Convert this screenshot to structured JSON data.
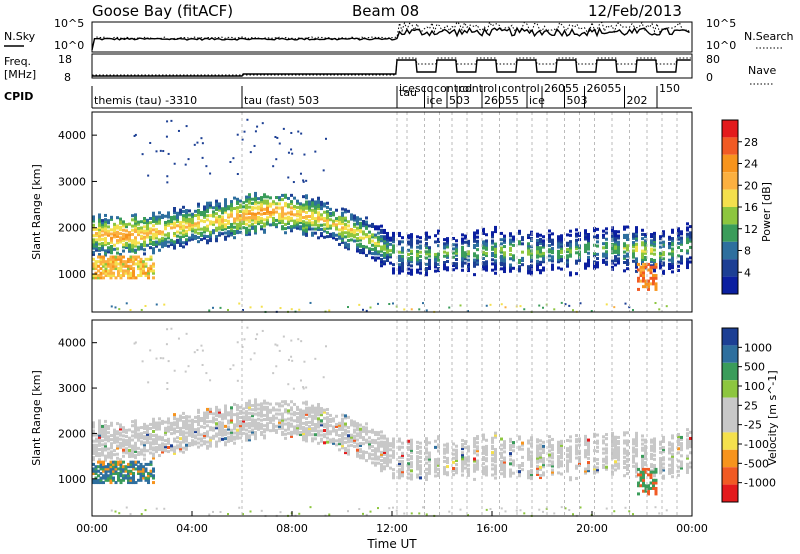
{
  "header": {
    "station": "Goose Bay (fitACF)",
    "beam": "Beam 08",
    "date": "12/Feb/2013"
  },
  "noise_panel": {
    "left_label": "N.Sky",
    "right_label": "N.Search",
    "y_ticks_left": [
      "10^5",
      "10^0"
    ],
    "y_ticks_right": [
      "10^5",
      "10^0"
    ]
  },
  "freq_panel": {
    "left_label_line1": "Freq.",
    "left_label_line2": "[MHz]",
    "right_label": "Nave",
    "y_ticks_left": [
      "18",
      "8"
    ],
    "y_ticks_right": [
      "80",
      "0"
    ]
  },
  "cpid": {
    "label": "CPID",
    "segments": [
      {
        "start_hour": 0.0,
        "text": "themis (tau) -3310"
      },
      {
        "start_hour": 6.0,
        "text": "tau (fast) 503"
      },
      {
        "start_hour": 12.2,
        "text": "tau"
      },
      {
        "start_hour": 12.2,
        "text": "icesco"
      },
      {
        "start_hour": 13.3,
        "text": "ice"
      },
      {
        "start_hour": 13.6,
        "text": "control"
      },
      {
        "start_hour": 14.2,
        "text": "503"
      },
      {
        "start_hour": 14.6,
        "text": "control"
      },
      {
        "start_hour": 15.6,
        "text": "26055"
      },
      {
        "start_hour": 16.3,
        "text": "control"
      },
      {
        "start_hour": 17.4,
        "text": "ice"
      },
      {
        "start_hour": 18.0,
        "text": "26055"
      },
      {
        "start_hour": 18.9,
        "text": "503"
      },
      {
        "start_hour": 19.7,
        "text": "26055"
      },
      {
        "start_hour": 21.3,
        "text": "202"
      },
      {
        "start_hour": 22.6,
        "text": "150"
      }
    ]
  },
  "power_panel": {
    "ylabel": "Slant Range [km]",
    "colorbar_label": "Power [dB]",
    "colorbar_ticks": [
      "28",
      "24",
      "20",
      "16",
      "12",
      "8",
      "4"
    ],
    "colorbar_colors": [
      "#e41a1c",
      "#f15a24",
      "#f7941d",
      "#fbb040",
      "#f4e04d",
      "#8dc63f",
      "#3a9c5a",
      "#2e6f9e",
      "#1c3f94",
      "#0b1fa0"
    ]
  },
  "velocity_panel": {
    "ylabel": "Slant Range [km]",
    "colorbar_label": "Velocity [m s^-1]",
    "colorbar_ticks": [
      "1000",
      "500",
      "100",
      "25",
      "-25",
      "-100",
      "-500",
      "-1000"
    ],
    "colorbar_colors": [
      "#1c3f94",
      "#2e6f9e",
      "#3a9c5a",
      "#8dc63f",
      "#c8c8c8",
      "#c8c8c8",
      "#f4e04d",
      "#f7941d",
      "#f15a24",
      "#e41a1c"
    ]
  },
  "x_axis": {
    "label": "Time UT",
    "ticks": [
      "00:00",
      "04:00",
      "08:00",
      "12:00",
      "16:00",
      "20:00",
      "00:00"
    ]
  },
  "chart_data": [
    {
      "type": "heatmap",
      "title": "Power",
      "xlabel": "",
      "ylabel": "Slant Range [km]",
      "xlim_hours": [
        0,
        24
      ],
      "ylim_km": [
        180,
        4500
      ],
      "y_ticks": [
        1000,
        2000,
        3000,
        4000
      ],
      "colorbar": {
        "label": "Power [dB]",
        "ticks": [
          4,
          8,
          12,
          16,
          20,
          24,
          28
        ]
      },
      "echo_band": {
        "hours": [
          0,
          1,
          2,
          3,
          4,
          5,
          6,
          7,
          8,
          9,
          10,
          11,
          12,
          13,
          14,
          15,
          16,
          17,
          18,
          19,
          20,
          21,
          22,
          23,
          24
        ],
        "center_km": [
          1900,
          1850,
          1900,
          2000,
          2100,
          2200,
          2300,
          2400,
          2350,
          2250,
          2050,
          1800,
          1500,
          1450,
          1500,
          1500,
          1550,
          1500,
          1500,
          1500,
          1600,
          1600,
          1550,
          1500,
          1700
        ],
        "typical_dB": [
          14,
          18,
          16,
          14,
          14,
          14,
          16,
          18,
          16,
          14,
          14,
          12,
          8,
          8,
          8,
          8,
          8,
          10,
          8,
          8,
          8,
          8,
          12,
          8,
          8
        ]
      },
      "low_range_patch": {
        "hours": [
          0,
          2.5
        ],
        "range_km": [
          950,
          1450
        ],
        "typical_dB": 20
      }
    },
    {
      "type": "heatmap",
      "title": "Velocity",
      "xlabel": "Time UT",
      "ylabel": "Slant Range [km]",
      "xlim_hours": [
        0,
        24
      ],
      "ylim_km": [
        180,
        4500
      ],
      "y_ticks": [
        1000,
        2000,
        3000,
        4000
      ],
      "colorbar": {
        "label": "Velocity [m s^-1]",
        "ticks": [
          -1000,
          -500,
          -100,
          -25,
          25,
          100,
          500,
          1000
        ]
      },
      "note_values": {
        "background_velocity_m_s": 0
      }
    }
  ],
  "colors": {
    "ground_scatter": "#c8c8c8",
    "frame": "#000000"
  }
}
